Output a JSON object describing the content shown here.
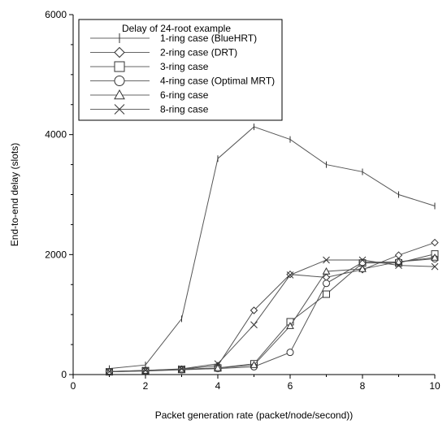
{
  "chart_data": {
    "type": "line",
    "title": "",
    "xlabel": "Packet generation rate (packet/node/second))",
    "ylabel": "End-to-end delay (slots)",
    "xlim": [
      0,
      10
    ],
    "ylim": [
      0,
      6000
    ],
    "x_ticks": [
      0,
      2,
      4,
      6,
      8,
      10
    ],
    "y_ticks": [
      0,
      2000,
      4000,
      6000
    ],
    "grid": false,
    "legend": {
      "title": "Delay of 24-root example",
      "placement": "top-left"
    },
    "x": [
      1,
      2,
      3,
      4,
      5,
      6,
      7,
      8,
      9,
      10
    ],
    "series": [
      {
        "name": "1-ring case (BlueHRT)",
        "marker": "plus",
        "color": "#555555",
        "values": [
          100,
          160,
          930,
          3600,
          4130,
          3920,
          3500,
          3380,
          3000,
          2810
        ]
      },
      {
        "name": "2-ring case (DRT)",
        "marker": "diamond",
        "color": "#555555",
        "values": [
          50,
          70,
          90,
          150,
          1070,
          1670,
          1620,
          1750,
          1990,
          2200
        ]
      },
      {
        "name": "3-ring case",
        "marker": "square",
        "color": "#555555",
        "values": [
          45,
          65,
          85,
          110,
          180,
          880,
          1340,
          1860,
          1860,
          2010
        ]
      },
      {
        "name": "4-ring case (Optimal MRT)",
        "marker": "circle",
        "color": "#555555",
        "values": [
          45,
          60,
          80,
          100,
          130,
          370,
          1520,
          1870,
          1880,
          1930
        ]
      },
      {
        "name": "6-ring case",
        "marker": "triangle",
        "color": "#555555",
        "values": [
          50,
          65,
          85,
          110,
          160,
          810,
          1720,
          1760,
          1880,
          1950
        ]
      },
      {
        "name": "8-ring case",
        "marker": "x",
        "color": "#555555",
        "values": [
          50,
          70,
          95,
          180,
          830,
          1660,
          1910,
          1910,
          1820,
          1800
        ]
      }
    ]
  }
}
